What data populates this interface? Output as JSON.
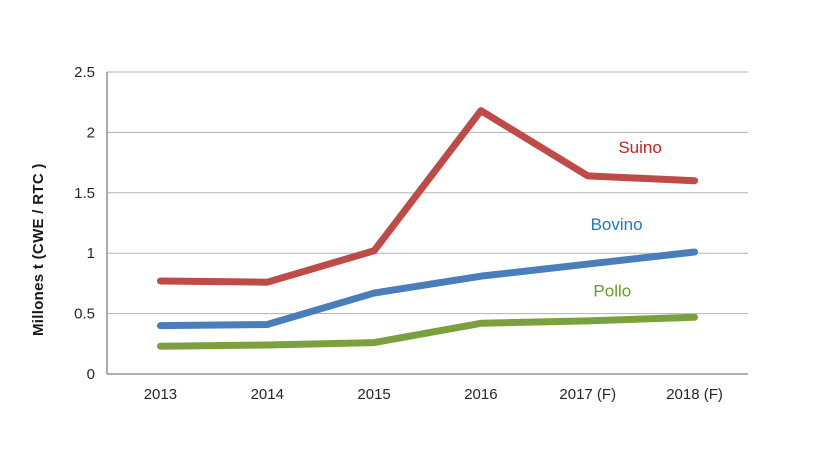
{
  "chart_data": {
    "type": "line",
    "ylabel": "Millones t (CWE / RTC )",
    "categories": [
      "2013",
      "2014",
      "2015",
      "2016",
      "2017 (F)",
      "2018 (F)"
    ],
    "ylim": [
      0,
      2.5
    ],
    "yticks": [
      0,
      0.5,
      1,
      1.5,
      2,
      2.5
    ],
    "ytick_labels": [
      "0",
      "0.5",
      "1",
      "1.5",
      "2",
      "2.5"
    ],
    "grid": true,
    "legend_position": "inline-labels-right-of-lines",
    "series": [
      {
        "name": "Suino",
        "line_color": "#BE4B48",
        "label_color": "#C42420",
        "values": [
          0.77,
          0.76,
          1.02,
          2.18,
          1.64,
          1.6
        ],
        "label_at": {
          "x": 4.49,
          "y": 1.88
        }
      },
      {
        "name": "Bovino",
        "line_color": "#4A7EBB",
        "label_color": "#2277CC",
        "values": [
          0.4,
          0.41,
          0.67,
          0.81,
          0.91,
          1.01
        ],
        "label_at": {
          "x": 4.27,
          "y": 1.24
        }
      },
      {
        "name": "Pollo",
        "line_color": "#7BA13E",
        "label_color": "#66A022",
        "values": [
          0.23,
          0.24,
          0.26,
          0.42,
          0.44,
          0.47
        ],
        "label_at": {
          "x": 4.23,
          "y": 0.69
        }
      }
    ],
    "axis_color": "#808080",
    "grid_color": "#B3B3B3",
    "tick_label_color": "#262626"
  }
}
